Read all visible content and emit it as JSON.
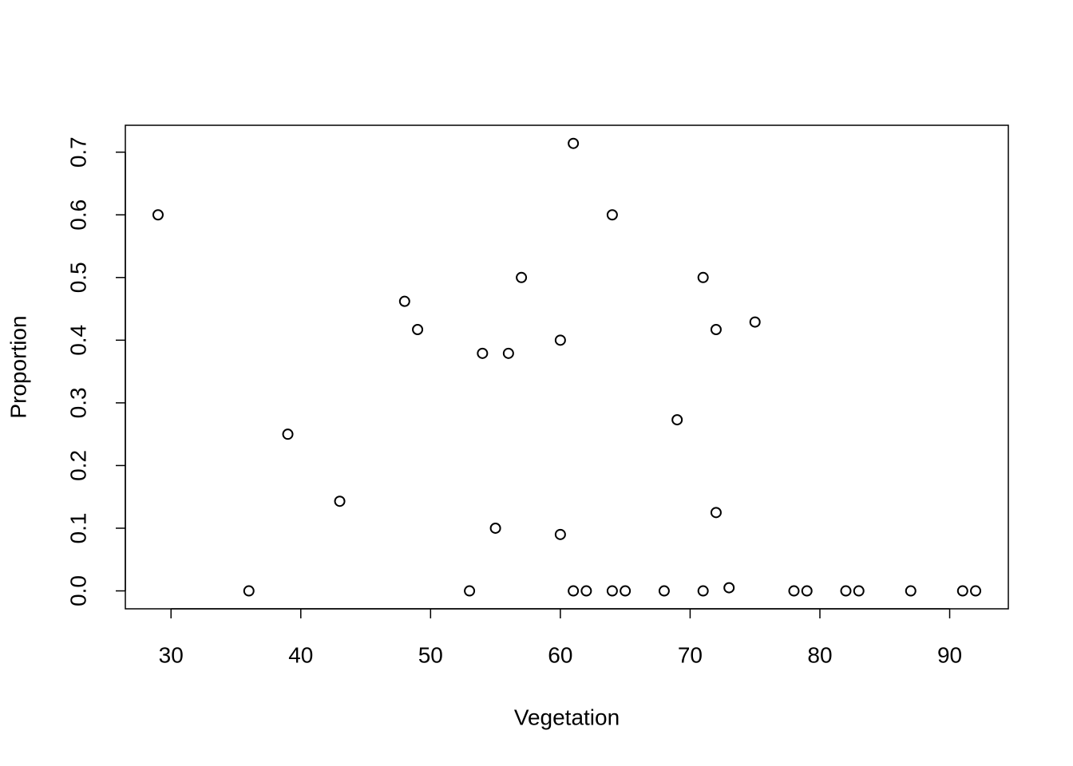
{
  "chart_data": {
    "type": "scatter",
    "x_label": "Vegetation",
    "y_label": "Proportion",
    "x": [
      29,
      36,
      39,
      43,
      48,
      49,
      53,
      54,
      55,
      56,
      57,
      60,
      60,
      61,
      61,
      62,
      64,
      64,
      65,
      68,
      69,
      71,
      71,
      72,
      72,
      73,
      75,
      78,
      79,
      82,
      83,
      87,
      91,
      92
    ],
    "values": [
      0.6,
      0,
      0.25,
      0.143,
      0.462,
      0.417,
      0,
      0.379,
      0.1,
      0.379,
      0.5,
      0.4,
      0.09,
      0.714,
      0,
      0,
      0.6,
      0,
      0,
      0,
      0.273,
      0.5,
      0,
      0.417,
      0.125,
      0.005,
      0.429,
      0,
      0,
      0,
      0,
      0,
      0,
      0
    ],
    "color": "#000000",
    "xlim": [
      26.48,
      94.52
    ],
    "ylim": [
      -0.0286,
      0.7429
    ],
    "xticks": [
      30,
      40,
      50,
      60,
      70,
      80,
      90
    ],
    "yticks": [
      {
        "value": 0,
        "label": "0.0"
      },
      {
        "value": 0.1,
        "label": "0.1"
      },
      {
        "value": 0.2,
        "label": "0.2"
      },
      {
        "value": 0.3,
        "label": "0.3"
      },
      {
        "value": 0.4,
        "label": "0.4"
      },
      {
        "value": 0.5,
        "label": "0.5"
      },
      {
        "value": 0.6,
        "label": "0.6"
      },
      {
        "value": 0.7,
        "label": "0.7"
      }
    ]
  }
}
